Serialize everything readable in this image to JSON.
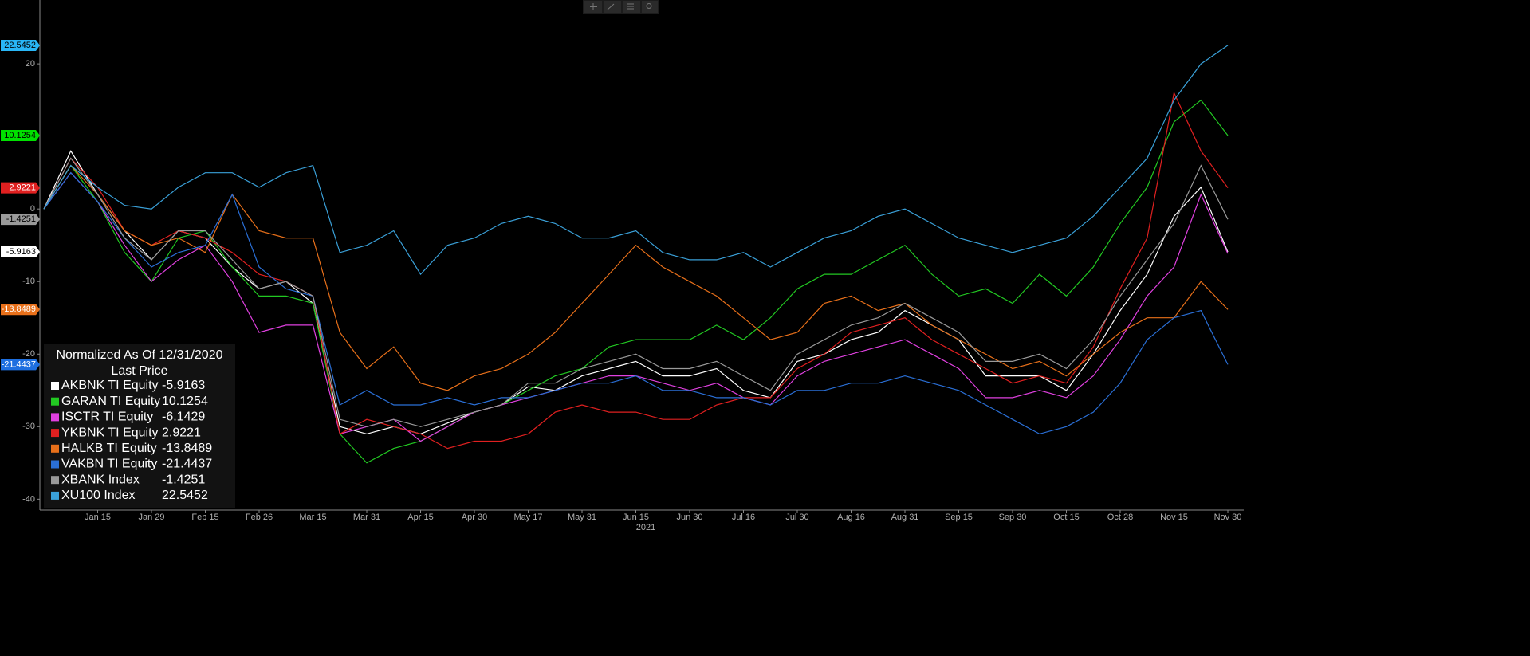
{
  "chart_data": {
    "type": "line",
    "legend_title": "Normalized As Of 12/31/2020",
    "legend_subtitle": "Last Price",
    "x_axis_year": "2021",
    "categories": [
      null,
      null,
      "Jan 15",
      null,
      "Jan 29",
      null,
      "Feb 15",
      null,
      "Feb 26",
      null,
      "Mar 15",
      null,
      "Mar 31",
      null,
      "Apr 15",
      null,
      "Apr 30",
      null,
      "May 17",
      null,
      "May 31",
      null,
      "Jun 15",
      null,
      "Jun 30",
      null,
      "Jul 16",
      null,
      "Jul 30",
      null,
      "Aug 16",
      null,
      "Aug 31",
      null,
      "Sep 15",
      null,
      "Sep 30",
      null,
      "Oct 15",
      null,
      "Oct 28",
      null,
      "Nov 15",
      null,
      "Nov 30"
    ],
    "ylim": [
      -41.5,
      28.8
    ],
    "yticks": [
      -40,
      -30,
      -20,
      -10,
      0,
      20
    ],
    "legend": "bottom-left",
    "series": [
      {
        "name": "AKBNK TI Equity",
        "last": -5.9163,
        "color": "#ffffff",
        "tag_color": "#ffffff",
        "values": [
          0,
          8,
          2,
          -3,
          -7,
          -3,
          -4,
          -8,
          -11,
          -10,
          -13,
          -30,
          -31,
          -30,
          -31,
          -29.5,
          -28,
          -27,
          -24.5,
          -25,
          -23,
          -22,
          -21,
          -23,
          -23,
          -22,
          -25,
          -26,
          -21,
          -20,
          -18,
          -17,
          -14,
          -16,
          -18,
          -23,
          -23,
          -23,
          -25,
          -20,
          -14,
          -9,
          -1,
          3,
          -5.9163
        ]
      },
      {
        "name": "GARAN TI Equity",
        "last": 10.1254,
        "color": "#22c822",
        "tag_color": "#00e000",
        "values": [
          0,
          6,
          1,
          -6,
          -10,
          -4,
          -3,
          -8,
          -12,
          -12,
          -13,
          -31,
          -35,
          -33,
          -32,
          -30,
          -28,
          -27,
          -25,
          -23,
          -22,
          -19,
          -18,
          -18,
          -18,
          -16,
          -18,
          -15,
          -11,
          -9,
          -9,
          -7,
          -5,
          -9,
          -12,
          -11,
          -13,
          -9,
          -12,
          -8,
          -2,
          3,
          12,
          15,
          10.1254
        ]
      },
      {
        "name": "ISCTR TI Equity",
        "last": -6.1429,
        "color": "#e040e0",
        "values": [
          0,
          5,
          1,
          -5,
          -10,
          -7,
          -5,
          -10,
          -17,
          -16,
          -16,
          -31,
          -30,
          -29,
          -32,
          -30,
          -28,
          -27,
          -26,
          -25,
          -24,
          -23,
          -23,
          -24,
          -25,
          -24,
          -26,
          -27,
          -23,
          -21,
          -20,
          -19,
          -18,
          -20,
          -22,
          -26,
          -26,
          -25,
          -26,
          -23,
          -18,
          -12,
          -8,
          2,
          -6.1429
        ]
      },
      {
        "name": "YKBNK TI Equity",
        "last": 2.9221,
        "color": "#e02020",
        "tag_color": "#e02020",
        "values": [
          0,
          7,
          3,
          -3,
          -5,
          -3,
          -4,
          -6,
          -9,
          -10,
          -12,
          -31,
          -29,
          -30,
          -31,
          -33,
          -32,
          -32,
          -31,
          -28,
          -27,
          -28,
          -28,
          -29,
          -29,
          -27,
          -26,
          -26,
          -22,
          -20,
          -17,
          -16,
          -15,
          -18,
          -20,
          -22,
          -24,
          -23,
          -24,
          -19,
          -11,
          -4,
          16,
          8,
          2.9221
        ]
      },
      {
        "name": "HALKB TI Equity",
        "last": -13.8489,
        "color": "#e8701a",
        "tag_color": "#e8701a",
        "values": [
          0,
          6,
          2,
          -3,
          -5,
          -4,
          -6,
          2,
          -3,
          -4,
          -4,
          -17,
          -22,
          -19,
          -24,
          -25,
          -23,
          -22,
          -20,
          -17,
          -13,
          -9,
          -5,
          -8,
          -10,
          -12,
          -15,
          -18,
          -17,
          -13,
          -12,
          -14,
          -13,
          -16,
          -18,
          -20,
          -22,
          -21,
          -23,
          -20,
          -17,
          -15,
          -15,
          -10,
          -13.8489
        ]
      },
      {
        "name": "VAKBN TI Equity",
        "last": -21.4437,
        "color": "#2a6fd6",
        "tag_color": "#1e6fe0",
        "values": [
          0,
          5,
          1,
          -4,
          -8,
          -6,
          -5,
          2,
          -8,
          -11,
          -12,
          -27,
          -25,
          -27,
          -27,
          -26,
          -27,
          -26,
          -26,
          -25,
          -24,
          -24,
          -23,
          -25,
          -25,
          -26,
          -26,
          -27,
          -25,
          -25,
          -24,
          -24,
          -23,
          -24,
          -25,
          -27,
          -29,
          -31,
          -30,
          -28,
          -24,
          -18,
          -15,
          -14,
          -21.4437
        ]
      },
      {
        "name": "XBANK Index",
        "last": -1.4251,
        "color": "#9a9a9a",
        "tag_color": "#9a9a9a",
        "values": [
          0,
          7,
          2,
          -4,
          -7,
          -3,
          -3,
          -7,
          -11,
          -10,
          -12,
          -29,
          -30,
          -29,
          -30,
          -29,
          -28,
          -27,
          -24,
          -24,
          -22,
          -21,
          -20,
          -22,
          -22,
          -21,
          -23,
          -25,
          -20,
          -18,
          -16,
          -15,
          -13,
          -15,
          -17,
          -21,
          -21,
          -20,
          -22,
          -18,
          -12,
          -7,
          -2,
          6,
          -1.4251
        ]
      },
      {
        "name": "XU100 Index",
        "last": 22.5452,
        "color": "#3aa0d8",
        "tag_color": "#29b6f6",
        "values": [
          0,
          6,
          3,
          0.5,
          0,
          3,
          5,
          5,
          3,
          5,
          6,
          -6,
          -5,
          -3,
          -9,
          -5,
          -4,
          -2,
          -1,
          -2,
          -4,
          -4,
          -3,
          -6,
          -7,
          -7,
          -6,
          -8,
          -6,
          -4,
          -3,
          -1,
          0,
          -2,
          -4,
          -5,
          -6,
          -5,
          -4,
          -1,
          3,
          7,
          15,
          20,
          22.5452
        ]
      }
    ]
  }
}
